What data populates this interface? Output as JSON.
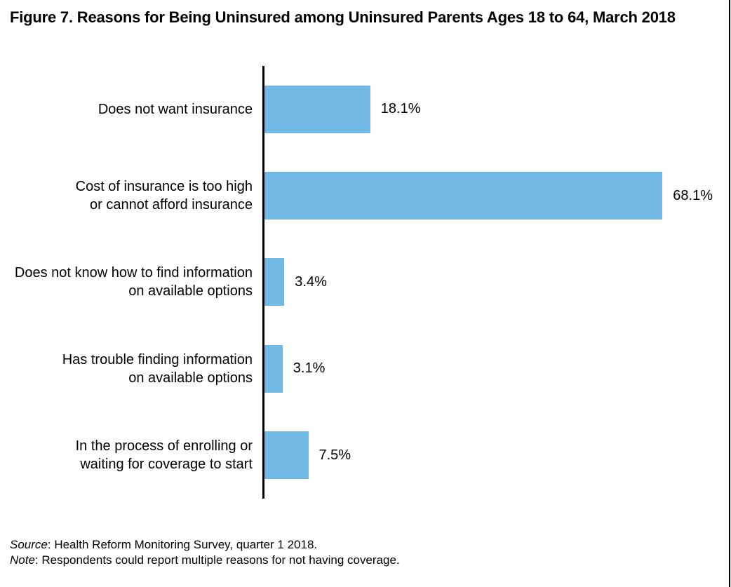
{
  "figure": {
    "title": "Figure 7. Reasons for Being Uninsured among Uninsured Parents Ages 18 to 64, March 2018",
    "source_label": "Source",
    "source_rest": ": Health Reform Monitoring Survey, quarter 1 2018.",
    "note_label": "Note",
    "note_rest": ": Respondents could report multiple reasons for not having coverage."
  },
  "chart_data": {
    "type": "bar",
    "orientation": "horizontal",
    "title": "Figure 7. Reasons for Being Uninsured among Uninsured Parents Ages 18 to 64, March 2018",
    "categories": [
      "Does not want insurance",
      "Cost of insurance is too high\nor cannot afford insurance",
      "Does not know how to find information\non available options",
      "Has trouble finding information\non available options",
      "In the process of enrolling or\nwaiting for coverage to start"
    ],
    "values": [
      18.1,
      68.1,
      3.4,
      3.1,
      7.5
    ],
    "value_labels": [
      "18.1%",
      "68.1%",
      "3.4%",
      "3.1%",
      "7.5%"
    ],
    "unit": "%",
    "xlim": [
      0,
      70
    ],
    "grid": false,
    "legend": false,
    "bar_color": "#73B9E6",
    "axis_color": "#000000"
  }
}
